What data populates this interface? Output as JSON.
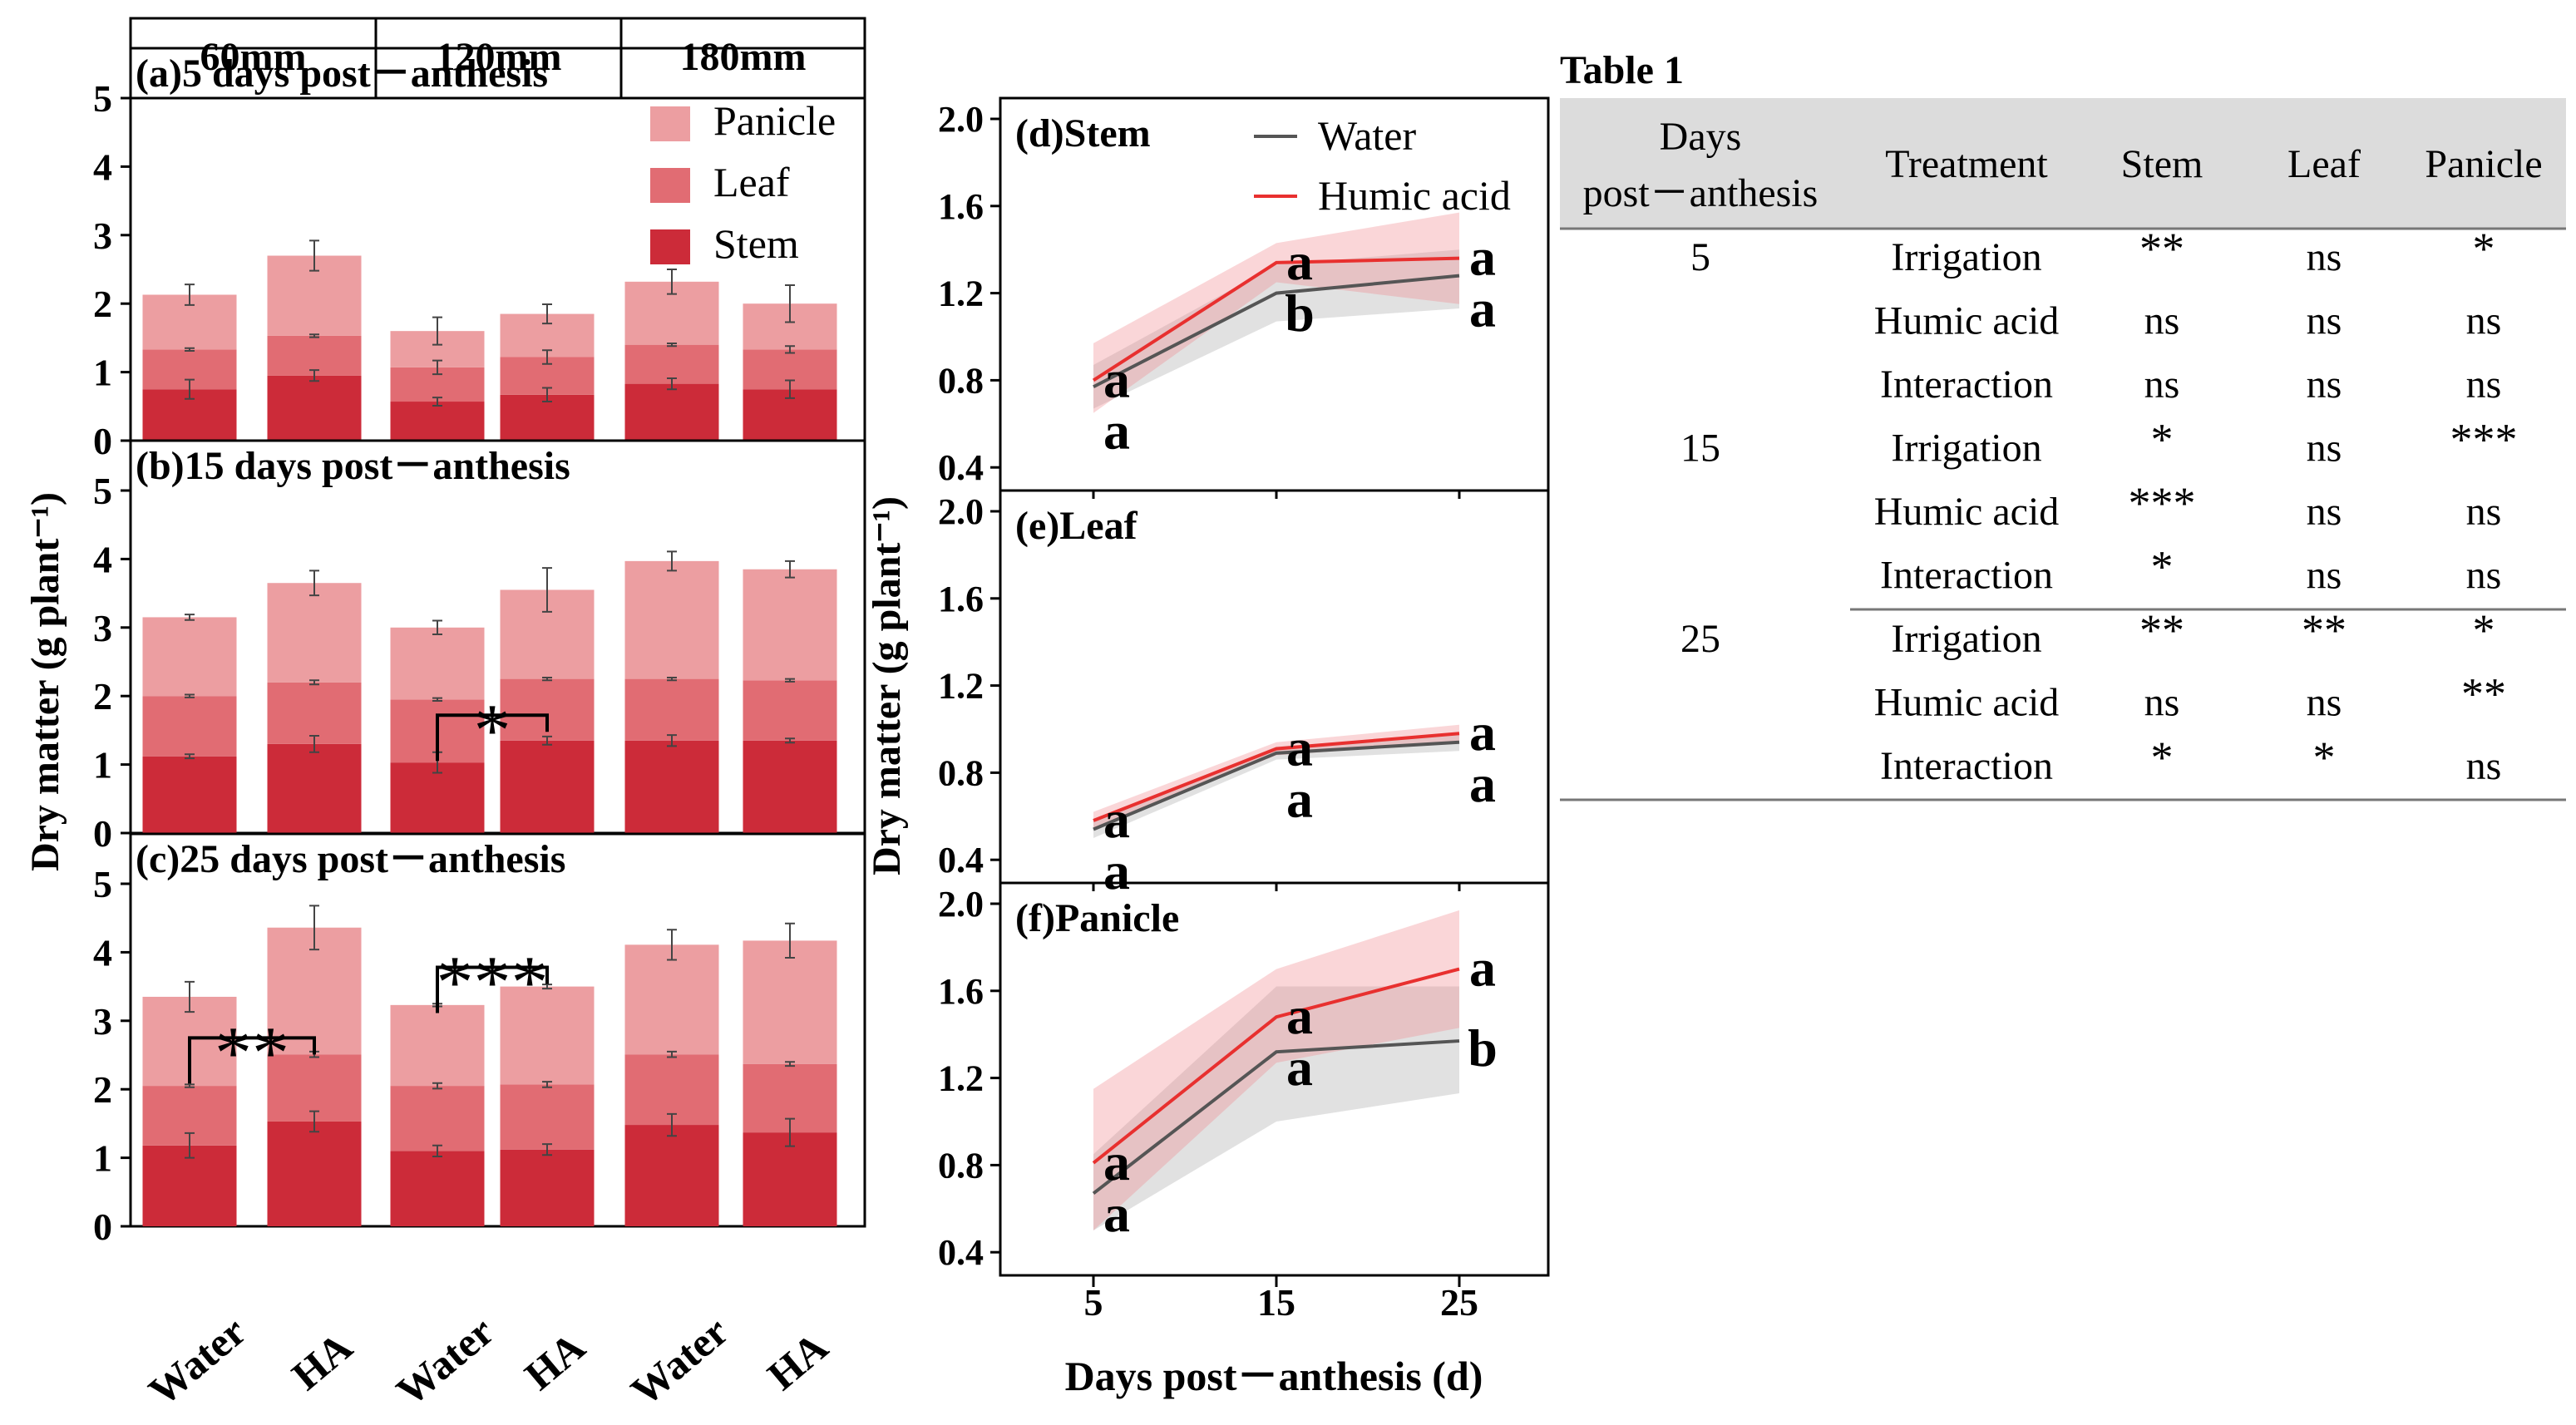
{
  "chart_data": [
    {
      "type": "bar",
      "stacked": true,
      "header": [
        "60mm",
        "120mm",
        "180mm"
      ],
      "categories": [
        "Water",
        "HA",
        "Water",
        "HA",
        "Water",
        "HA"
      ],
      "ylabel": "Dry matter (g plant⁻¹)",
      "ylim": [
        0,
        5
      ],
      "yticks": [
        "0",
        "1",
        "2",
        "3",
        "4",
        "5"
      ],
      "legend": [
        {
          "label": "Panicle",
          "color": "#ec9ea1"
        },
        {
          "label": "Leaf",
          "color": "#e16c73"
        },
        {
          "label": "Stem",
          "color": "#cc2b39"
        }
      ],
      "panels": [
        {
          "title": "(a)5 days post－anthesis",
          "stem": [
            0.75,
            0.95,
            0.57,
            0.67,
            0.83,
            0.75
          ],
          "leaf": [
            0.58,
            0.58,
            0.5,
            0.55,
            0.57,
            0.58
          ],
          "panicle": [
            0.8,
            1.17,
            0.53,
            0.63,
            0.92,
            0.67
          ],
          "err_total": [
            0.15,
            0.22,
            0.2,
            0.14,
            0.18,
            0.27
          ],
          "err_stem": [
            0.14,
            0.08,
            0.06,
            0.1,
            0.08,
            0.13
          ],
          "err_leaf": [
            0.02,
            0.02,
            0.1,
            0.1,
            0.02,
            0.05
          ],
          "sig": []
        },
        {
          "title": "(b)15 days post－anthesis",
          "stem": [
            1.12,
            1.3,
            1.03,
            1.35,
            1.35,
            1.35
          ],
          "leaf": [
            0.88,
            0.9,
            0.92,
            0.9,
            0.9,
            0.88
          ],
          "panicle": [
            1.15,
            1.45,
            1.05,
            1.3,
            1.72,
            1.62
          ],
          "err_total": [
            0.04,
            0.18,
            0.1,
            0.32,
            0.14,
            0.12
          ],
          "err_stem": [
            0.03,
            0.12,
            0.15,
            0.06,
            0.08,
            0.03
          ],
          "err_leaf": [
            0.02,
            0.03,
            0.02,
            0.02,
            0.02,
            0.02
          ],
          "sig": [
            {
              "label": "*",
              "from": 2,
              "to": 3,
              "level": 1.72
            }
          ]
        },
        {
          "title": "(c)25 days post－anthesis",
          "stem": [
            1.18,
            1.53,
            1.1,
            1.12,
            1.48,
            1.37
          ],
          "leaf": [
            0.87,
            0.98,
            0.95,
            0.95,
            1.03,
            1.0
          ],
          "panicle": [
            1.3,
            1.85,
            1.18,
            1.43,
            1.6,
            1.8
          ],
          "err_total": [
            0.22,
            0.32,
            0.02,
            0.03,
            0.22,
            0.25
          ],
          "err_stem": [
            0.18,
            0.15,
            0.08,
            0.08,
            0.16,
            0.2
          ],
          "err_leaf": [
            0.02,
            0.04,
            0.04,
            0.04,
            0.04,
            0.03
          ],
          "sig": [
            {
              "label": "**",
              "from": 0,
              "to": 1,
              "level": 2.75
            },
            {
              "label": "***",
              "from": 2,
              "to": 3,
              "level": 3.78
            }
          ]
        }
      ]
    },
    {
      "type": "line",
      "x": [
        5,
        15,
        25
      ],
      "xlabel": "Days post－anthesis (d)",
      "ylabel": "Dry matter (g plant⁻¹)",
      "xticks": [
        "5",
        "15",
        "25"
      ],
      "ylim": [
        0.35,
        2.05
      ],
      "yticks": [
        "0.4",
        "0.8",
        "1.2",
        "1.6",
        "2.0"
      ],
      "legend": [
        {
          "label": "Water",
          "color": "#555555"
        },
        {
          "label": "Humic acid",
          "color": "#e8302f"
        }
      ],
      "panels": [
        {
          "title": "(d)Stem",
          "water": [
            0.77,
            1.2,
            1.28
          ],
          "water_lo": [
            0.67,
            1.07,
            1.13
          ],
          "water_hi": [
            0.87,
            1.33,
            1.4
          ],
          "ha": [
            0.8,
            1.34,
            1.36
          ],
          "ha_lo": [
            0.65,
            1.25,
            1.15
          ],
          "ha_hi": [
            0.97,
            1.43,
            1.57
          ],
          "letters_ha": [
            "a",
            "a",
            "a"
          ],
          "letters_water": [
            "a",
            "b",
            "a"
          ]
        },
        {
          "title": "(e)Leaf",
          "water": [
            0.54,
            0.89,
            0.94
          ],
          "water_lo": [
            0.5,
            0.86,
            0.9
          ],
          "water_hi": [
            0.58,
            0.92,
            0.98
          ],
          "ha": [
            0.58,
            0.91,
            0.98
          ],
          "ha_lo": [
            0.54,
            0.88,
            0.94
          ],
          "ha_hi": [
            0.62,
            0.94,
            1.02
          ],
          "letters_ha": [
            "a",
            "a",
            "a"
          ],
          "letters_water": [
            "a",
            "a",
            "a"
          ]
        },
        {
          "title": "(f)Panicle",
          "water": [
            0.67,
            1.32,
            1.37
          ],
          "water_lo": [
            0.5,
            1.0,
            1.13
          ],
          "water_hi": [
            0.85,
            1.62,
            1.62
          ],
          "ha": [
            0.81,
            1.48,
            1.7
          ],
          "ha_lo": [
            0.5,
            1.27,
            1.43
          ],
          "ha_hi": [
            1.15,
            1.7,
            1.97
          ],
          "letters_ha": [
            "a",
            "a",
            "a"
          ],
          "letters_water": [
            "a",
            "a",
            "b"
          ]
        }
      ]
    },
    {
      "type": "table",
      "title": "Table 1",
      "columns": [
        "Days post－anthesis",
        "Treatment",
        "Stem",
        "Leaf",
        "Panicle"
      ],
      "groups": [
        {
          "day": "5",
          "rows": [
            [
              "Irrigation",
              "**",
              "ns",
              "*"
            ],
            [
              "Humic acid",
              "ns",
              "ns",
              "ns"
            ],
            [
              "Interaction",
              "ns",
              "ns",
              "ns"
            ]
          ]
        },
        {
          "day": "15",
          "rows": [
            [
              "Irrigation",
              "*",
              "ns",
              "***"
            ],
            [
              "Humic acid",
              "***",
              "ns",
              "ns"
            ],
            [
              "Interaction",
              "*",
              "ns",
              "ns"
            ]
          ]
        },
        {
          "day": "25",
          "rows": [
            [
              "Irrigation",
              "**",
              "**",
              "*"
            ],
            [
              "Humic acid",
              "ns",
              "ns",
              "**"
            ],
            [
              "Interaction",
              "*",
              "*",
              "ns"
            ]
          ]
        }
      ]
    }
  ]
}
